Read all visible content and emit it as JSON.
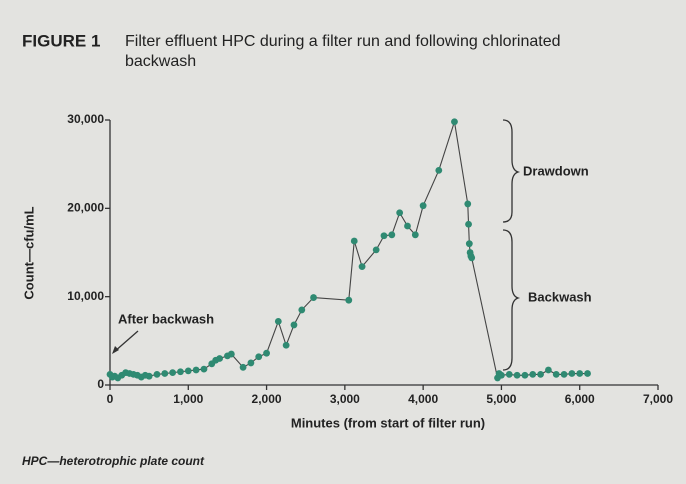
{
  "chart_data": {
    "type": "line",
    "figure_label": "FIGURE 1",
    "title": "Filter effluent HPC during a filter run and following chlorinated",
    "title_line2": "backwash",
    "x_label": "Minutes (from start of filter run)",
    "y_label": "Count—cfu/mL",
    "footnote": "HPC—heterotrophic plate count",
    "annotations": [
      "Drawdown",
      "Backwash",
      "After backwash"
    ],
    "color": "#2f8a72",
    "xlim": [
      0,
      7000
    ],
    "xticks": [
      0,
      {
        "value": 1000,
        "label": "1,000"
      },
      {
        "value": 2000,
        "label": "2,000"
      },
      {
        "value": 3000,
        "label": "3,000"
      },
      {
        "value": 4000,
        "label": "4,000"
      },
      {
        "value": 5000,
        "label": "5,000"
      },
      {
        "value": 6000,
        "label": "6,000"
      },
      {
        "value": 7000,
        "label": "7,000"
      }
    ],
    "ylim": [
      0,
      30000
    ],
    "yticks": [
      0,
      {
        "value": 10000,
        "label": "10,000"
      },
      {
        "value": 20000,
        "label": "20,000"
      },
      {
        "value": 30000,
        "label": "30,000"
      }
    ],
    "x": [
      0,
      30,
      60,
      100,
      150,
      200,
      250,
      300,
      350,
      400,
      450,
      500,
      600,
      700,
      800,
      900,
      1000,
      1100,
      1200,
      1300,
      1350,
      1400,
      1500,
      1550,
      1700,
      1800,
      1900,
      2000,
      2150,
      2250,
      2350,
      2450,
      2600,
      3050,
      3120,
      3220,
      3400,
      3500,
      3600,
      3700,
      3800,
      3900,
      4000,
      4200,
      4400,
      4570,
      4580,
      4590,
      4600,
      4610,
      4620,
      4950,
      4970,
      5000,
      5100,
      5200,
      5300,
      5400,
      5500,
      5600,
      5700,
      5800,
      5900,
      6000,
      6100
    ],
    "values": [
      1200,
      900,
      1000,
      800,
      1100,
      1400,
      1300,
      1200,
      1100,
      900,
      1100,
      1000,
      1200,
      1300,
      1400,
      1500,
      1600,
      1700,
      1800,
      2400,
      2800,
      3000,
      3300,
      3500,
      2000,
      2500,
      3200,
      3600,
      7200,
      4500,
      6800,
      8500,
      9900,
      9600,
      16300,
      13400,
      15300,
      16900,
      17000,
      19500,
      18000,
      17000,
      20300,
      24300,
      29800,
      20500,
      18200,
      16000,
      15000,
      14600,
      14400,
      800,
      1300,
      1100,
      1200,
      1100,
      1100,
      1200,
      1200,
      1700,
      1200,
      1200,
      1300,
      1300,
      1300
    ]
  }
}
